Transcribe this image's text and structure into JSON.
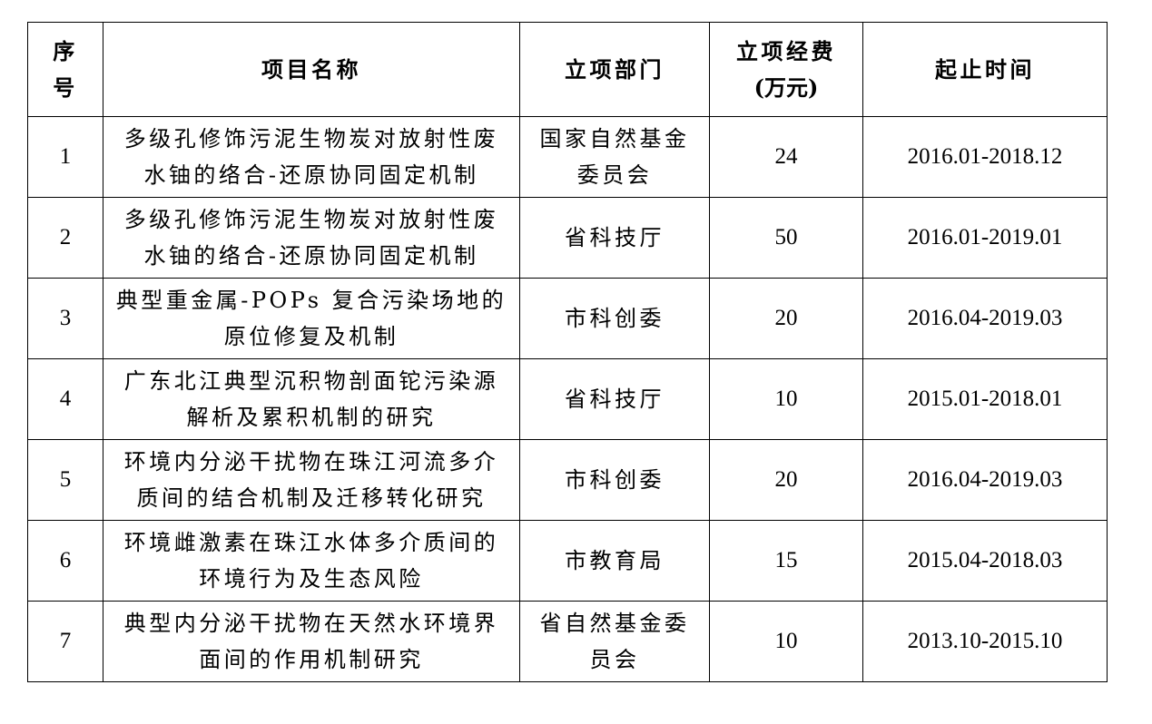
{
  "headers": {
    "index": [
      "序",
      "号"
    ],
    "name": [
      "项目名称"
    ],
    "dept": [
      "立项部门"
    ],
    "funding": [
      "立项经费",
      "(万元)"
    ],
    "period": [
      "起止时间"
    ]
  },
  "rows": [
    {
      "index": "1",
      "name": [
        "多级孔修饰污泥生物炭对放射性废",
        "水铀的络合-还原协同固定机制"
      ],
      "dept": [
        "国家自然基金",
        "委员会"
      ],
      "funding": "24",
      "period": "2016.01-2018.12"
    },
    {
      "index": "2",
      "name": [
        "多级孔修饰污泥生物炭对放射性废",
        "水铀的络合-还原协同固定机制"
      ],
      "dept": [
        "省科技厅"
      ],
      "funding": "50",
      "period": "2016.01-2019.01"
    },
    {
      "index": "3",
      "name": [
        "典型重金属-POPs 复合污染场地的",
        "原位修复及机制"
      ],
      "dept": [
        "市科创委"
      ],
      "funding": "20",
      "period": "2016.04-2019.03"
    },
    {
      "index": "4",
      "name": [
        "广东北江典型沉积物剖面铊污染源",
        "解析及累积机制的研究"
      ],
      "dept": [
        "省科技厅"
      ],
      "funding": "10",
      "period": "2015.01-2018.01"
    },
    {
      "index": "5",
      "name": [
        "环境内分泌干扰物在珠江河流多介",
        "质间的结合机制及迁移转化研究"
      ],
      "dept": [
        "市科创委"
      ],
      "funding": "20",
      "period": "2016.04-2019.03"
    },
    {
      "index": "6",
      "name": [
        "环境雌激素在珠江水体多介质间的",
        "环境行为及生态风险"
      ],
      "dept": [
        "市教育局"
      ],
      "funding": "15",
      "period": "2015.04-2018.03"
    },
    {
      "index": "7",
      "name": [
        "典型内分泌干扰物在天然水环境界",
        "面间的作用机制研究"
      ],
      "dept": [
        "省自然基金委",
        "员会"
      ],
      "funding": "10",
      "period": "2013.10-2015.10"
    }
  ]
}
